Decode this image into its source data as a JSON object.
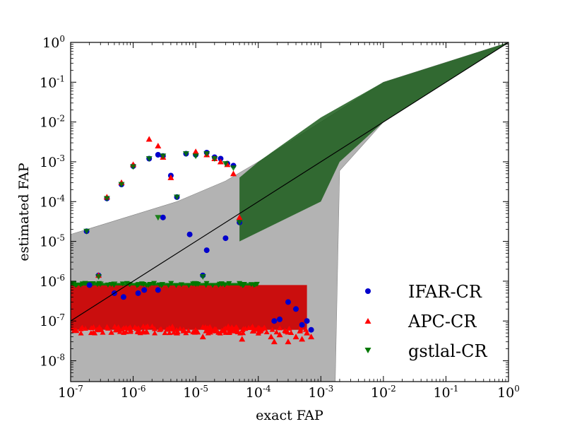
{
  "chart_data": {
    "type": "scatter",
    "xscale": "log",
    "yscale": "log",
    "xlim": [
      1e-07,
      1
    ],
    "ylim": [
      3e-09,
      1
    ],
    "xlabel": "exact FAP",
    "ylabel": "estimated FAP",
    "grid": false,
    "legend_position": "lower-right",
    "x_ticks": [
      {
        "base": "10",
        "exp": "-7",
        "value": 1e-07
      },
      {
        "base": "10",
        "exp": "-6",
        "value": 1e-06
      },
      {
        "base": "10",
        "exp": "-5",
        "value": 1e-05
      },
      {
        "base": "10",
        "exp": "-4",
        "value": 0.0001
      },
      {
        "base": "10",
        "exp": "-3",
        "value": 0.001
      },
      {
        "base": "10",
        "exp": "-2",
        "value": 0.01
      },
      {
        "base": "10",
        "exp": "-1",
        "value": 0.1
      },
      {
        "base": "10",
        "exp": "0",
        "value": 1
      }
    ],
    "y_ticks": [
      {
        "base": "10",
        "exp": "-8",
        "value": 1e-08
      },
      {
        "base": "10",
        "exp": "-7",
        "value": 1e-07
      },
      {
        "base": "10",
        "exp": "-6",
        "value": 1e-06
      },
      {
        "base": "10",
        "exp": "-5",
        "value": 1e-05
      },
      {
        "base": "10",
        "exp": "-4",
        "value": 0.0001
      },
      {
        "base": "10",
        "exp": "-3",
        "value": 0.001
      },
      {
        "base": "10",
        "exp": "-2",
        "value": 0.01
      },
      {
        "base": "10",
        "exp": "-1",
        "value": 0.1
      },
      {
        "base": "10",
        "exp": "0",
        "value": 1
      }
    ],
    "reference_line": {
      "x": [
        1e-07,
        1
      ],
      "y": [
        1e-07,
        1
      ],
      "color": "#000000"
    },
    "bands": [
      {
        "role": "outer-band",
        "color": "#b3b3b3",
        "polygon": [
          [
            1e-07,
            1.5e-05
          ],
          [
            5e-06,
            0.0001
          ],
          [
            3e-05,
            0.00033
          ],
          [
            0.0001,
            0.001
          ],
          [
            0.001,
            0.01
          ],
          [
            0.01,
            0.1
          ],
          [
            1,
            1
          ],
          [
            0.1,
            0.1
          ],
          [
            0.01,
            0.01
          ],
          [
            0.002,
            0.0006
          ],
          [
            0.0017,
            3e-09
          ],
          [
            1e-07,
            3e-09
          ]
        ]
      },
      {
        "role": "inner-band",
        "color": "#1a5c1a",
        "polygon": [
          [
            5e-05,
            0.0004
          ],
          [
            0.0001,
            0.001
          ],
          [
            0.001,
            0.013
          ],
          [
            0.01,
            0.1
          ],
          [
            1,
            1
          ],
          [
            0.1,
            0.1
          ],
          [
            0.01,
            0.01
          ],
          [
            0.002,
            0.001
          ],
          [
            0.001,
            0.0001
          ],
          [
            5e-05,
            1e-05
          ]
        ]
      }
    ],
    "series": [
      {
        "name": "IFAR-CR",
        "marker": "circle",
        "color": "#0000cc",
        "x": [
          1.8e-07,
          2.8e-07,
          3.8e-07,
          6.5e-07,
          1e-06,
          1.8e-06,
          2.5e-06,
          3e-06,
          4e-06,
          5e-06,
          7e-06,
          1e-05,
          1.5e-05,
          2e-05,
          2.5e-05,
          3.2e-05,
          4e-05,
          5e-05,
          0.00018,
          0.0003,
          0.0004,
          0.0005,
          0.0006,
          0.0007,
          0.00022,
          1.3e-05,
          2e-07,
          5e-07,
          1.5e-06,
          3e-06,
          8e-06,
          1.5e-05,
          3e-05,
          2.5e-06,
          1.2e-06,
          7e-07
        ],
        "y": [
          1.8e-05,
          1.4e-06,
          0.00012,
          0.00027,
          0.00078,
          0.0012,
          0.0015,
          0.0014,
          0.00045,
          0.00013,
          0.0016,
          0.0015,
          0.0017,
          0.0013,
          0.0012,
          0.0009,
          0.0008,
          3e-05,
          1e-07,
          3e-07,
          2e-07,
          8e-08,
          1e-07,
          6e-08,
          1.1e-07,
          1.4e-06,
          8e-07,
          5e-07,
          6e-07,
          4e-05,
          1.5e-05,
          6e-06,
          1.2e-05,
          6e-07,
          5e-07,
          4e-07
        ]
      },
      {
        "name": "APC-CR",
        "marker": "triangle-up",
        "color": "#ff0000",
        "x": [
          2.8e-07,
          3.8e-07,
          6.5e-07,
          1e-06,
          1.8e-06,
          2.5e-06,
          3e-06,
          4e-06,
          1e-05,
          1.5e-05,
          2e-05,
          2.5e-05,
          3.2e-05,
          4e-05,
          5e-05,
          0.00018,
          0.0003,
          0.0004,
          0.0005,
          0.0006,
          0.0007,
          0.00022,
          5.5e-05,
          0.00016,
          1.3e-05,
          5e-06
        ],
        "y": [
          1.4e-06,
          0.00013,
          0.0003,
          0.00085,
          0.0037,
          0.0025,
          0.0013,
          0.0004,
          0.0018,
          0.0015,
          0.0012,
          0.001,
          0.00085,
          0.0005,
          4e-05,
          3e-08,
          3e-08,
          4e-08,
          3.5e-08,
          5e-08,
          4e-08,
          4.5e-08,
          3.5e-08,
          4e-08,
          4e-08,
          5e-08
        ]
      },
      {
        "name": "gstlal-CR",
        "marker": "triangle-down",
        "color": "#007700",
        "x": [
          1.8e-07,
          2.8e-07,
          3.8e-07,
          6.5e-07,
          1e-06,
          1.8e-06,
          3e-06,
          5e-06,
          7e-06,
          1e-05,
          1.5e-05,
          2e-05,
          3e-05,
          4e-05,
          5e-05,
          1.3e-05,
          2.5e-06,
          1e-07,
          3e-07,
          5e-07
        ],
        "y": [
          1.8e-05,
          1.3e-06,
          0.00012,
          0.00027,
          0.00075,
          0.0012,
          0.0014,
          0.00013,
          0.0016,
          0.0014,
          0.0016,
          0.0012,
          0.0009,
          0.0007,
          3e-05,
          1.3e-06,
          4e-05,
          8.5e-07,
          8.5e-07,
          8.5e-07
        ]
      }
    ],
    "dense_regions": [
      {
        "series": "APC-CR",
        "color": "#cc0000",
        "x_range": [
          1e-07,
          0.0006
        ],
        "y_range": [
          6e-08,
          8e-07
        ]
      },
      {
        "series": "gstlal-CR",
        "color": "#007700",
        "x_range": [
          1e-07,
          0.0001
        ],
        "y_range": [
          7.8e-07,
          9e-07
        ]
      }
    ]
  }
}
